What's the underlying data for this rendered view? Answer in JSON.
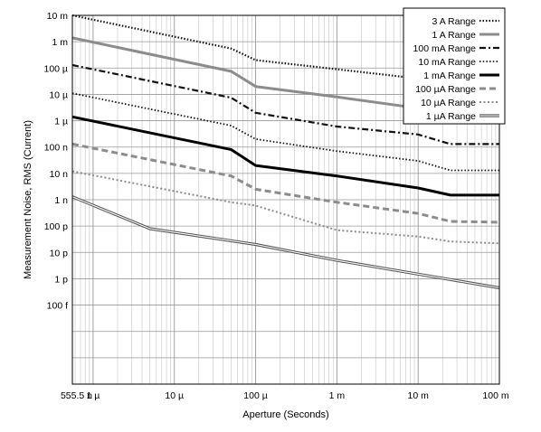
{
  "chart_data": {
    "type": "line",
    "xlabel": "Aperture (Seconds)",
    "ylabel": "Measurement Noise, RMS (Current)",
    "x_scale": "log",
    "y_scale": "log",
    "xlim": [
      5.555e-07,
      0.1
    ],
    "ylim": [
      1e-13,
      10
    ],
    "grid": true,
    "legend_position": "top-right",
    "x_ticks": [
      {
        "value": 5.555e-07,
        "label": "555.5 n"
      },
      {
        "value": 1e-06,
        "label": "1 µ"
      },
      {
        "value": 1e-05,
        "label": "10 µ"
      },
      {
        "value": 0.0001,
        "label": "100 µ"
      },
      {
        "value": 0.001,
        "label": "1 m"
      },
      {
        "value": 0.01,
        "label": "10 m"
      },
      {
        "value": 0.1,
        "label": "100 m"
      }
    ],
    "y_ticks": [
      {
        "value": 10,
        "label": "10 m"
      },
      {
        "value": 1,
        "label": "1 m"
      },
      {
        "value": 0.1,
        "label": "100 µ"
      },
      {
        "value": 0.01,
        "label": "10 µ"
      },
      {
        "value": 0.001,
        "label": "1 µ"
      },
      {
        "value": 0.0001,
        "label": "100 n"
      },
      {
        "value": 1e-05,
        "label": "10 n"
      },
      {
        "value": 1e-06,
        "label": "1 n"
      },
      {
        "value": 1e-07,
        "label": "100 p"
      },
      {
        "value": 1e-08,
        "label": "10 p"
      },
      {
        "value": 1e-09,
        "label": "1 p"
      },
      {
        "value": 1e-10,
        "label": "100 f"
      }
    ],
    "series": [
      {
        "name": "3 A Range",
        "color": "#111111",
        "style": "dotted-thick",
        "points": [
          [
            5.555e-07,
            10.0
          ],
          [
            5e-05,
            0.55
          ],
          [
            0.0001,
            0.2
          ],
          [
            0.001,
            0.09
          ],
          [
            0.01,
            0.04
          ],
          [
            0.025,
            0.015
          ],
          [
            0.1,
            0.014
          ]
        ]
      },
      {
        "name": "1 A Range",
        "color": "#8c8c8c",
        "style": "solid-thick",
        "points": [
          [
            5.555e-07,
            1.4
          ],
          [
            5e-05,
            0.075
          ],
          [
            0.0001,
            0.02
          ],
          [
            0.001,
            0.008
          ],
          [
            0.01,
            0.003
          ],
          [
            0.025,
            0.0015
          ],
          [
            0.1,
            0.0013
          ]
        ]
      },
      {
        "name": "100 mA Range",
        "color": "#111111",
        "style": "dashdot",
        "points": [
          [
            5.555e-07,
            0.13
          ],
          [
            5e-05,
            0.0075
          ],
          [
            0.0001,
            0.002
          ],
          [
            0.001,
            0.0006
          ],
          [
            0.01,
            0.0003
          ],
          [
            0.025,
            0.00013
          ],
          [
            0.1,
            0.00013
          ]
        ]
      },
      {
        "name": "10 mA Range",
        "color": "#111111",
        "style": "dotted",
        "points": [
          [
            5.555e-07,
            0.011
          ],
          [
            5e-05,
            0.00065
          ],
          [
            0.0001,
            0.0002
          ],
          [
            0.001,
            7e-05
          ],
          [
            0.01,
            3e-05
          ],
          [
            0.025,
            1.3e-05
          ],
          [
            0.1,
            1.3e-05
          ]
        ]
      },
      {
        "name": "1 mA Range",
        "color": "#000000",
        "style": "solid-bold",
        "points": [
          [
            5.555e-07,
            0.0014
          ],
          [
            5e-05,
            8e-05
          ],
          [
            0.0001,
            2e-05
          ],
          [
            0.001,
            8e-06
          ],
          [
            0.01,
            2.8e-06
          ],
          [
            0.025,
            1.5e-06
          ],
          [
            0.1,
            1.5e-06
          ]
        ]
      },
      {
        "name": "100 µA Range",
        "color": "#8c8c8c",
        "style": "dashed-thick",
        "points": [
          [
            5.555e-07,
            0.00013
          ],
          [
            5e-05,
            8e-06
          ],
          [
            0.0001,
            2.5e-06
          ],
          [
            0.001,
            8e-07
          ],
          [
            0.01,
            3e-07
          ],
          [
            0.025,
            1.5e-07
          ],
          [
            0.1,
            1.4e-07
          ]
        ]
      },
      {
        "name": "10 µA Range",
        "color": "#8c8c8c",
        "style": "dotted-gray",
        "points": [
          [
            5.555e-07,
            1.2e-05
          ],
          [
            5e-05,
            8e-07
          ],
          [
            0.0001,
            6e-07
          ],
          [
            0.001,
            7e-08
          ],
          [
            0.01,
            4e-08
          ],
          [
            0.025,
            2.6e-08
          ],
          [
            0.1,
            2.2e-08
          ]
        ]
      },
      {
        "name": "1 µA Range",
        "color": "#555555",
        "style": "double",
        "points": [
          [
            5.555e-07,
            1.3e-06
          ],
          [
            5e-06,
            8e-08
          ],
          [
            0.0001,
            2e-08
          ],
          [
            0.001,
            5e-09
          ],
          [
            0.01,
            1.5e-09
          ],
          [
            0.1,
            4.5e-10
          ]
        ]
      }
    ]
  }
}
